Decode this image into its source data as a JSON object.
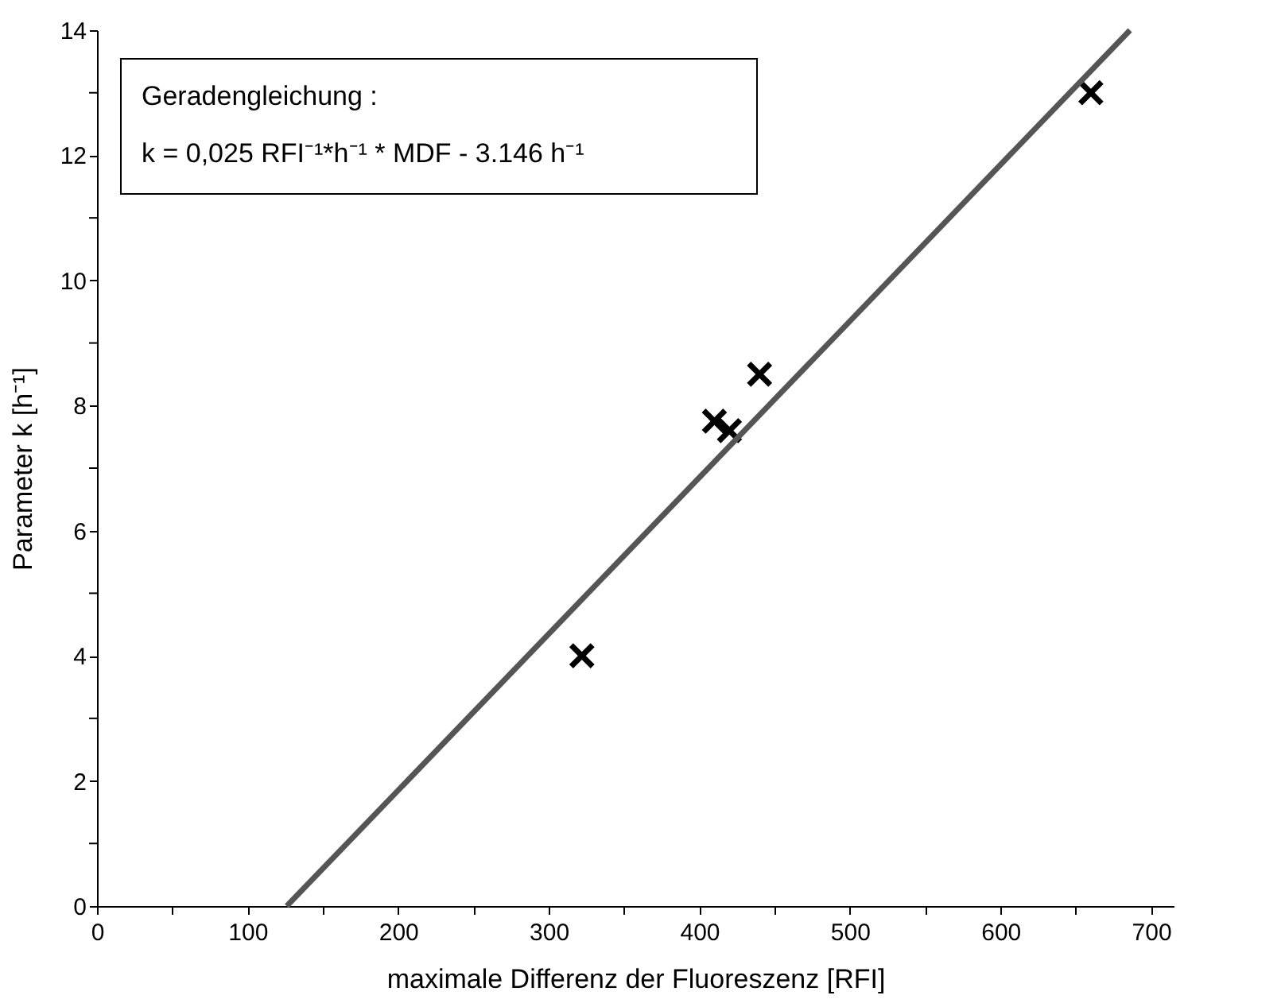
{
  "chart_data": {
    "type": "scatter",
    "xlabel": "maximale Differenz der Fluoreszenz [RFI]",
    "ylabel": "Parameter k [h⁻¹]",
    "xlim": [
      0,
      715
    ],
    "ylim": [
      0,
      14
    ],
    "xticks": [
      0,
      {
        "value": 50,
        "label": null
      },
      100,
      {
        "value": 150,
        "label": null
      },
      200,
      {
        "value": 250,
        "label": null
      },
      300,
      {
        "value": 350,
        "label": null
      },
      400,
      {
        "value": 450,
        "label": null
      },
      500,
      {
        "value": 550,
        "label": null
      },
      600,
      {
        "value": 650,
        "label": null
      },
      700
    ],
    "yticks": [
      0,
      {
        "value": 1,
        "label": null
      },
      2,
      {
        "value": 3,
        "label": null
      },
      4,
      {
        "value": 5,
        "label": null
      },
      6,
      {
        "value": 7,
        "label": null
      },
      8,
      {
        "value": 9,
        "label": null
      },
      10,
      {
        "value": 11,
        "label": null
      },
      12,
      {
        "value": 13,
        "label": null
      },
      14
    ],
    "marker": "cross",
    "series": [
      {
        "color": "#000000",
        "x": [
          322,
          410,
          420,
          440,
          660
        ],
        "values": [
          4.0,
          7.75,
          7.6,
          8.5,
          13.0
        ]
      },
      {
        "type": "line",
        "marker": "none",
        "line_style": "solid",
        "color": "#555555",
        "x": [
          126,
          686
        ],
        "values": [
          0,
          14
        ]
      }
    ],
    "annotations": [
      "Geradengleichung :",
      "k = 0,025 RFI⁻¹*h⁻¹ * MDF - 3.146 h⁻¹"
    ]
  }
}
